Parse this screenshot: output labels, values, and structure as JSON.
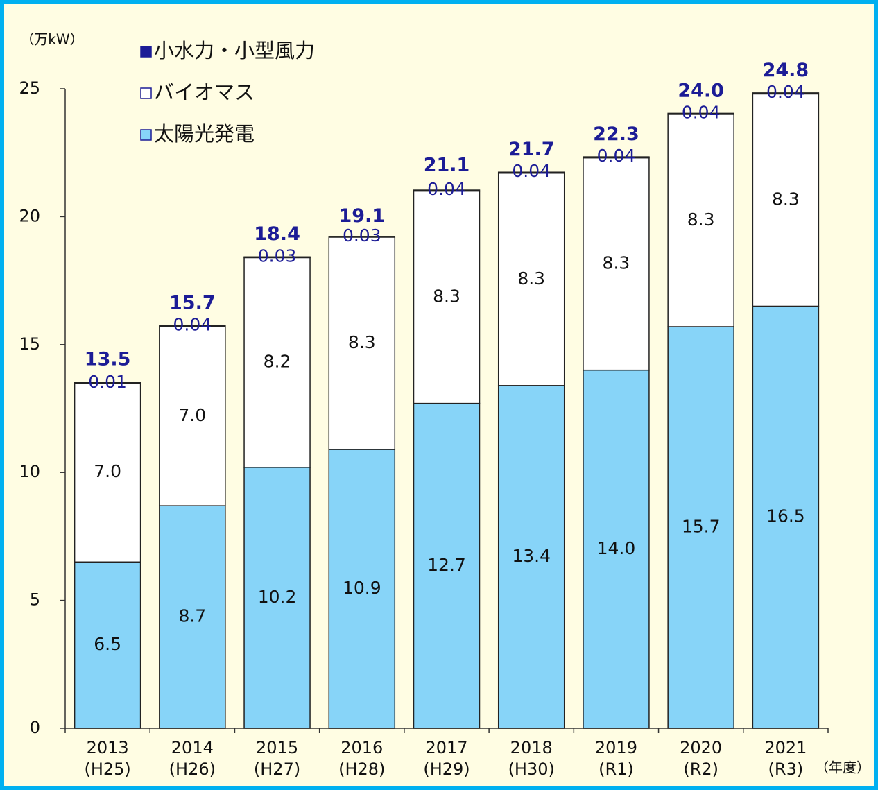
{
  "chart_data": {
    "type": "stacked_bar",
    "unit_label": "（万kW）",
    "x_unit_label": "（年度）",
    "categories": [
      "2013",
      "2014",
      "2015",
      "2016",
      "2017",
      "2018",
      "2019",
      "2020",
      "2021"
    ],
    "category_sublabels": [
      "(H25)",
      "(H26)",
      "(H27)",
      "(H28)",
      "(H29)",
      "(H30)",
      "(R1)",
      "(R2)",
      "(R3)"
    ],
    "series": [
      {
        "name": "太陽光発電",
        "color": "#87d4f8",
        "values": [
          6.5,
          8.7,
          10.2,
          10.9,
          12.7,
          13.4,
          14.0,
          15.7,
          16.5
        ],
        "value_labels": [
          "6.5",
          "8.7",
          "10.2",
          "10.9",
          "12.7",
          "13.4",
          "14.0",
          "15.7",
          "16.5"
        ]
      },
      {
        "name": "バイオマス",
        "color": "#ffffff",
        "values": [
          7.0,
          7.0,
          8.2,
          8.3,
          8.3,
          8.3,
          8.3,
          8.3,
          8.3
        ],
        "value_labels": [
          "7.0",
          "7.0",
          "8.2",
          "8.3",
          "8.3",
          "8.3",
          "8.3",
          "8.3",
          "8.3"
        ]
      },
      {
        "name": "小水力・小型風力",
        "color": "#1c1c96",
        "values": [
          0.01,
          0.04,
          0.03,
          0.03,
          0.04,
          0.04,
          0.04,
          0.04,
          0.04
        ]
      }
    ],
    "totals": [
      13.5,
      15.7,
      18.4,
      19.1,
      21.1,
      21.7,
      22.3,
      24.0,
      24.8
    ],
    "total_labels": [
      "13.5",
      "15.7",
      "18.4",
      "19.1",
      "21.1",
      "21.7",
      "22.3",
      "24.0",
      "24.8"
    ],
    "ylim": [
      0,
      25
    ],
    "yticks": [
      0,
      5,
      10,
      15,
      20,
      25
    ]
  }
}
